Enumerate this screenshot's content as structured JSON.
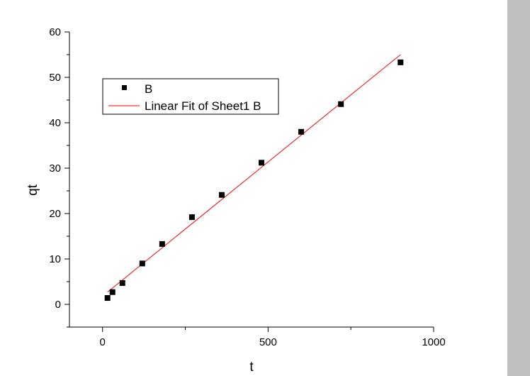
{
  "chart_data": {
    "type": "scatter",
    "xlabel": "t",
    "ylabel": "qt",
    "xlim": [
      -100,
      1000
    ],
    "ylim": [
      -5,
      60
    ],
    "xticks": [
      0,
      500,
      1000
    ],
    "xtick_labels": [
      "0",
      "500",
      "1000"
    ],
    "yticks": [
      0,
      10,
      20,
      30,
      40,
      50,
      60
    ],
    "ytick_labels": [
      "0",
      "10",
      "20",
      "30",
      "40",
      "50",
      "60"
    ],
    "grid": false,
    "legend_position": "upper-left",
    "series": [
      {
        "name": "B",
        "kind": "scatter",
        "marker": "square",
        "color": "#000000",
        "x": [
          15,
          30,
          60,
          120,
          180,
          270,
          360,
          480,
          600,
          720,
          900
        ],
        "y": [
          1.4,
          2.7,
          4.7,
          9.0,
          13.3,
          19.2,
          24.1,
          31.2,
          38.0,
          44.1,
          53.3
        ]
      },
      {
        "name": "Linear Fit of Sheet1 B",
        "kind": "line",
        "color": "#ff0000",
        "x": [
          15,
          900
        ],
        "y": [
          2.7,
          55.0
        ]
      }
    ]
  }
}
